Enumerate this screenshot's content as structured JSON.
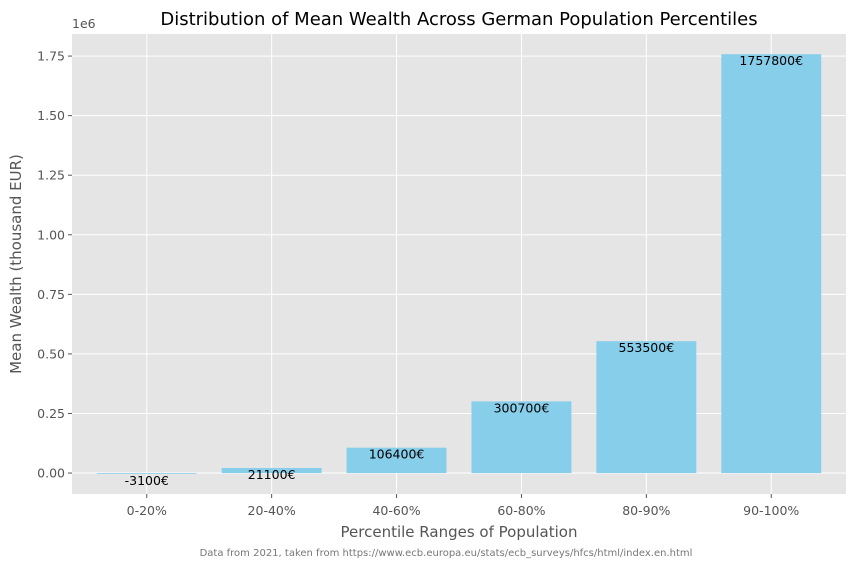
{
  "chart_data": {
    "type": "bar",
    "title": "Distribution of Mean Wealth Across German Population Percentiles",
    "xlabel": "Percentile Ranges of Population",
    "ylabel": "Mean Wealth (thousand EUR)",
    "categories": [
      "0-20%",
      "20-40%",
      "40-60%",
      "60-80%",
      "80-90%",
      "90-100%"
    ],
    "values": [
      -3100,
      21100,
      106400,
      300700,
      553500,
      1757800
    ],
    "data_labels": [
      "-3100€",
      "21100€",
      "106400€",
      "300700€",
      "553500€",
      "1757800€"
    ],
    "ylim": [
      -87945,
      1842645
    ],
    "yticks": [
      0,
      250000,
      500000,
      750000,
      1000000,
      1250000,
      1500000,
      1750000
    ],
    "ytick_labels": [
      "0.00",
      "0.25",
      "0.50",
      "0.75",
      "1.00",
      "1.25",
      "1.50",
      "1.75"
    ],
    "y_multiplier": "1e6",
    "grid": true,
    "bar_color": "#87CEEB",
    "background_color": "#E5E5E5",
    "footnote": "Data from 2021, taken from https://www.ecb.europa.eu/stats/ecb_surveys/hfcs/html/index.en.html"
  }
}
